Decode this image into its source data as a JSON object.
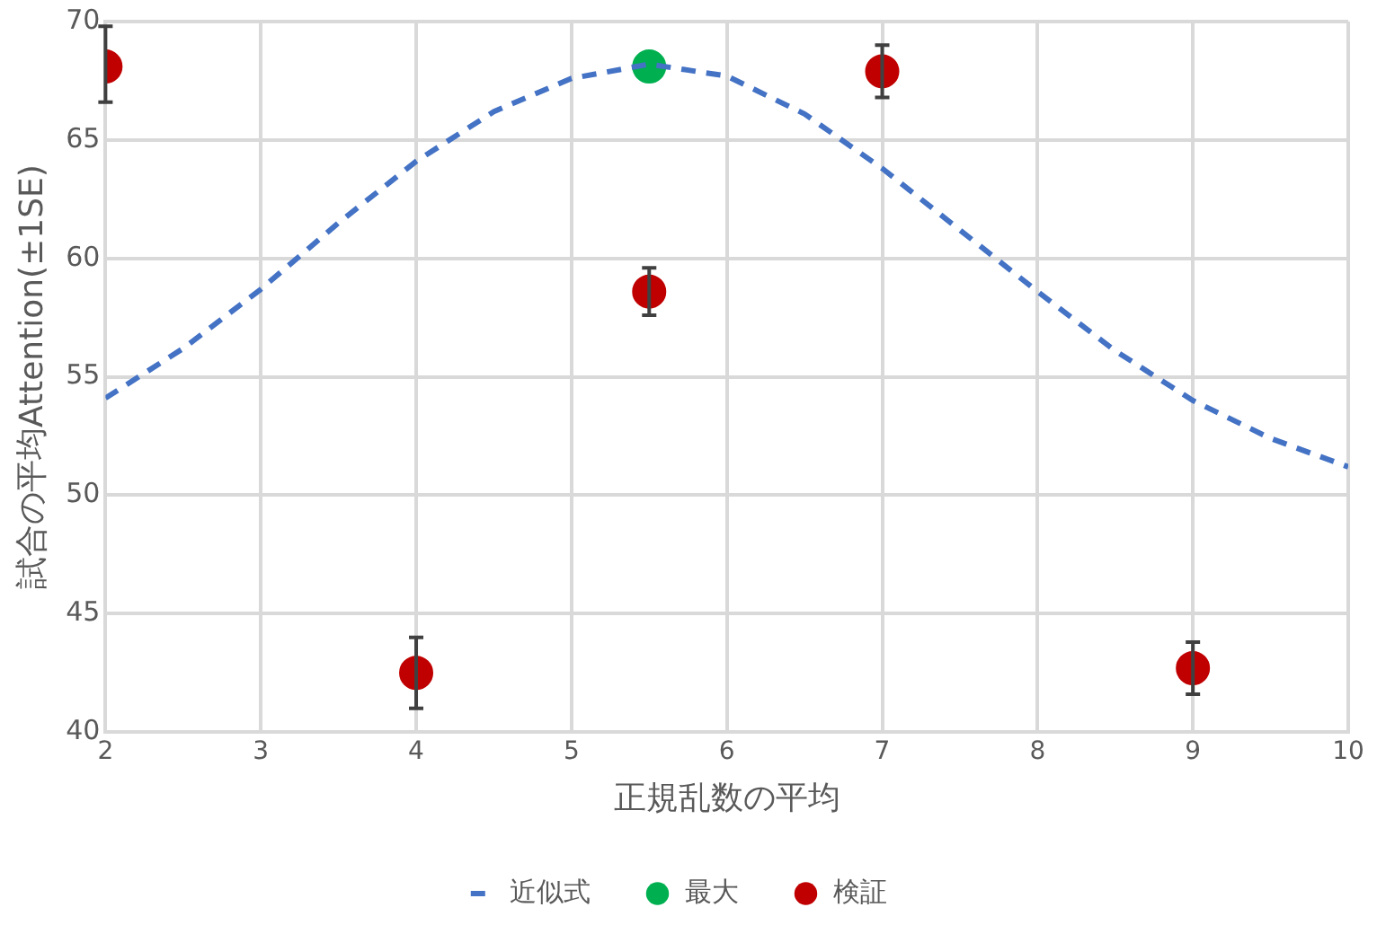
{
  "chart_data": {
    "type": "scatter",
    "xlabel": "正規乱数の平均",
    "ylabel": "試合の平均Attention(±1SE)",
    "xlim": [
      2,
      10
    ],
    "xticks": [
      2,
      3,
      4,
      5,
      6,
      7,
      8,
      9,
      10
    ],
    "ylim": [
      40,
      70
    ],
    "yticks": [
      40,
      45,
      50,
      55,
      60,
      65,
      70
    ],
    "grid": true,
    "legend": "bottom",
    "series": [
      {
        "name": "近似式",
        "type": "line",
        "color": "#4472c4",
        "line_style": "dashed",
        "marker": "none",
        "x": [
          2,
          2.5,
          3,
          3.5,
          4,
          4.5,
          5,
          5.5,
          6,
          6.5,
          7,
          7.5,
          8,
          8.5,
          9,
          9.5,
          10
        ],
        "values": [
          54.1,
          56.2,
          58.7,
          61.5,
          64.1,
          66.2,
          67.6,
          68.2,
          67.7,
          66.1,
          63.8,
          61.2,
          58.6,
          56.1,
          54.0,
          52.4,
          51.2
        ]
      },
      {
        "name": "最大",
        "type": "scatter",
        "color": "#00b050",
        "marker": "circle",
        "x": [
          5.5
        ],
        "values": [
          68.1
        ]
      },
      {
        "name": "検証",
        "type": "scatter",
        "color": "#c00000",
        "marker": "circle",
        "x": [
          2,
          4,
          5.5,
          7,
          9
        ],
        "values": [
          68.1,
          42.5,
          58.6,
          67.9,
          42.7
        ],
        "errors": [
          [
            66.6,
            69.8
          ],
          1.5,
          1.0,
          1.1,
          1.1
        ]
      }
    ]
  }
}
